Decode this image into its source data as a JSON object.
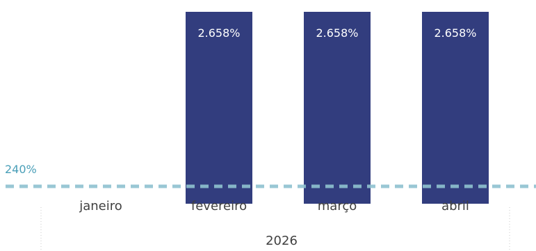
{
  "chart_data": {
    "type": "bar",
    "categories": [
      "janeiro",
      "fevereiro",
      "março",
      "abril"
    ],
    "values": [
      null,
      2658,
      2658,
      2658
    ],
    "value_labels": [
      "",
      "2.658%",
      "2.658%",
      "2.658%"
    ],
    "group_label": "2026",
    "reference_line": {
      "value": 240,
      "label": "240%",
      "style": "dashed",
      "color": "#8fc2d0"
    },
    "bar_color": "#323d7e",
    "ylim": [
      0,
      2658
    ],
    "grid": false,
    "legend": "none",
    "title": "",
    "xlabel": "",
    "ylabel": ""
  }
}
